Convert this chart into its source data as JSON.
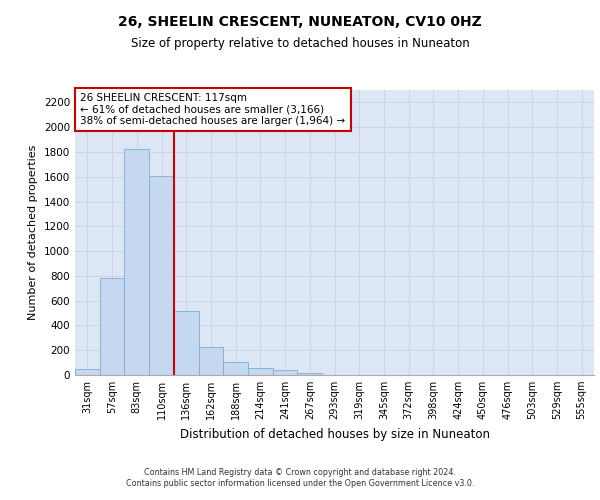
{
  "title": "26, SHEELIN CRESCENT, NUNEATON, CV10 0HZ",
  "subtitle": "Size of property relative to detached houses in Nuneaton",
  "xlabel": "Distribution of detached houses by size in Nuneaton",
  "ylabel": "Number of detached properties",
  "categories": [
    "31sqm",
    "57sqm",
    "83sqm",
    "110sqm",
    "136sqm",
    "162sqm",
    "188sqm",
    "214sqm",
    "241sqm",
    "267sqm",
    "293sqm",
    "319sqm",
    "345sqm",
    "372sqm",
    "398sqm",
    "424sqm",
    "450sqm",
    "476sqm",
    "503sqm",
    "529sqm",
    "555sqm"
  ],
  "values": [
    50,
    780,
    1820,
    1610,
    520,
    230,
    105,
    55,
    40,
    20,
    0,
    0,
    0,
    0,
    0,
    0,
    0,
    0,
    0,
    0,
    0
  ],
  "bar_color": "#c5d8f0",
  "bar_edge_color": "#7aadd4",
  "vline_x": 3.5,
  "vline_color": "#cc0000",
  "annotation_text": "26 SHEELIN CRESCENT: 117sqm\n← 61% of detached houses are smaller (3,166)\n38% of semi-detached houses are larger (1,964) →",
  "annotation_box_color": "#ffffff",
  "annotation_box_edge_color": "#cc0000",
  "ylim": [
    0,
    2300
  ],
  "yticks": [
    0,
    200,
    400,
    600,
    800,
    1000,
    1200,
    1400,
    1600,
    1800,
    2000,
    2200
  ],
  "grid_color": "#c8d0dc",
  "background_color": "#dce6f5",
  "footer_line1": "Contains HM Land Registry data © Crown copyright and database right 2024.",
  "footer_line2": "Contains public sector information licensed under the Open Government Licence v3.0."
}
